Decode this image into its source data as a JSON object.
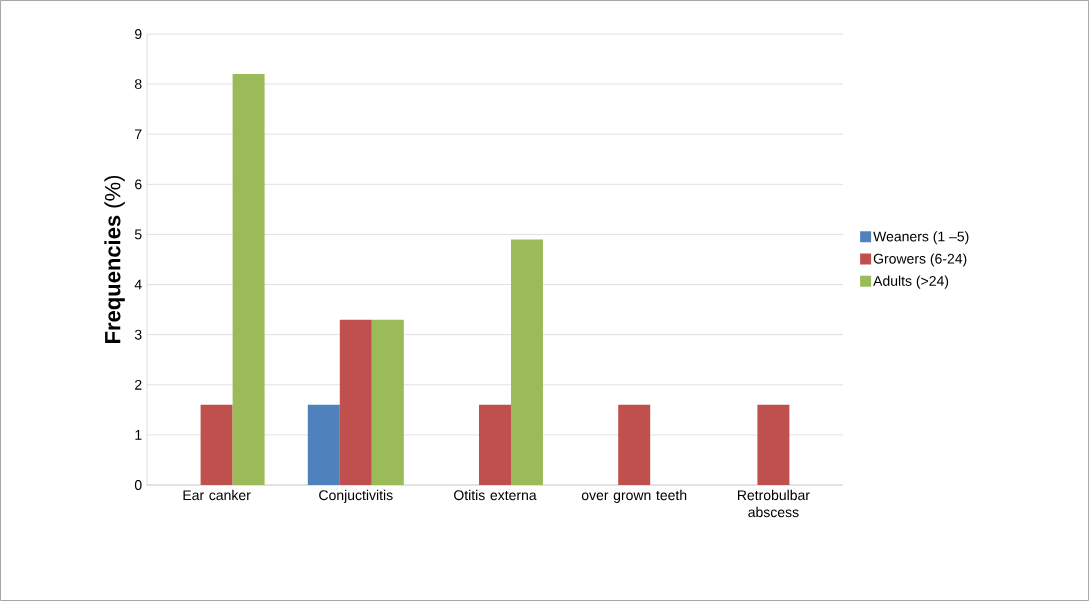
{
  "chart_data": {
    "type": "bar",
    "ylabel": "**Frequencies** (%)",
    "categories": [
      "Ear canker",
      "Conjuctivitis",
      "Otitis externa",
      "over grown teeth",
      "Retrobulbar abscess"
    ],
    "series": [
      {
        "name": "Weaners (1 –5)",
        "color": "#4f81bd",
        "values": [
          0,
          1.6,
          0,
          0,
          0
        ]
      },
      {
        "name": "Growers (6-24)",
        "color": "#c0504d",
        "values": [
          1.6,
          3.3,
          1.6,
          1.6,
          1.6
        ]
      },
      {
        "name": "Adults (>24)",
        "color": "#9bbb59",
        "values": [
          8.2,
          3.3,
          4.9,
          0,
          0
        ]
      }
    ],
    "ylim": [
      0,
      9
    ],
    "yticks": [
      0,
      1,
      2,
      3,
      4,
      5,
      6,
      7,
      8,
      9
    ],
    "grid": "y",
    "legend": "right"
  }
}
